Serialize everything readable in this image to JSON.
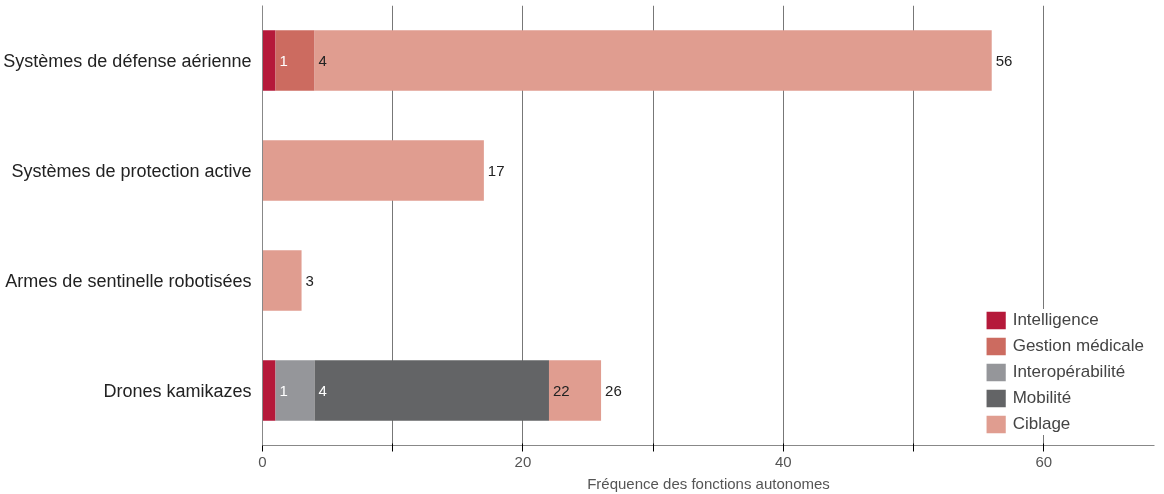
{
  "chart_data": {
    "type": "bar",
    "orientation": "horizontal",
    "stacked": true,
    "categories": [
      "Systèmes de défense aérienne",
      "Systèmes de protection active",
      "Armes de sentinelle robotisées",
      "Drones kamikazes"
    ],
    "series": [
      {
        "name": "Intelligence",
        "color": "#b5193a",
        "values": [
          1,
          null,
          null,
          1
        ]
      },
      {
        "name": "Gestion médicale",
        "color": "#cc6b60",
        "values": [
          3,
          null,
          null,
          null
        ]
      },
      {
        "name": "Interopérabilité",
        "color": "#95969a",
        "values": [
          null,
          null,
          null,
          3
        ]
      },
      {
        "name": "Mobilité",
        "color": "#636466",
        "values": [
          null,
          null,
          null,
          18
        ]
      },
      {
        "name": "Ciblage",
        "color": "#e09d90",
        "values": [
          52,
          17,
          3,
          4
        ]
      }
    ],
    "totals": [
      "56",
      "17",
      "3",
      "26"
    ],
    "annotations": [
      {
        "text": "1",
        "x": 1,
        "y": "Systèmes de défense aérienne"
      },
      {
        "text": "4",
        "x": 4,
        "y": "Systèmes de défense aérienne"
      },
      {
        "text": "1",
        "x": 1,
        "y": "Drones kamikazes"
      },
      {
        "text": "4",
        "x": 4,
        "y": "Drones kamikazes"
      },
      {
        "text": "22",
        "x": 22,
        "y": "Drones kamikazes"
      }
    ],
    "xlabel": "Fréquence des fonctions autonomes",
    "xlim": [
      0,
      68.5
    ],
    "xticks": [
      0,
      {
        "value": 10,
        "label": null
      },
      20,
      {
        "value": 30,
        "label": null
      },
      40,
      {
        "value": 50,
        "label": null
      },
      60
    ],
    "grid": "x",
    "legend": "bottom right"
  }
}
